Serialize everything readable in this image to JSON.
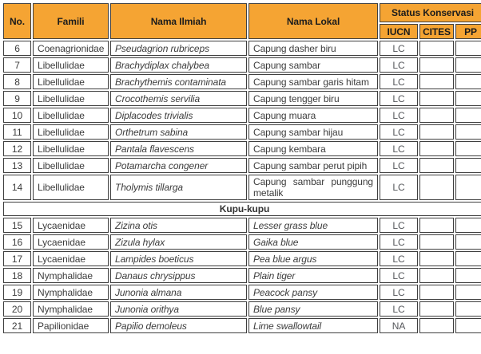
{
  "table": {
    "header": {
      "no": "No.",
      "famili": "Famili",
      "nama_ilmiah": "Nama Ilmiah",
      "nama_lokal": "Nama Lokal",
      "status_group": "Status Konservasi",
      "iucn": "IUCN",
      "cites": "CITES",
      "pp": "PP"
    },
    "rows": [
      {
        "no": "6",
        "famili": "Coenagrionidae",
        "nama_ilmiah": "Pseudagrion rubriceps",
        "nama_lokal": "Capung dasher biru",
        "lokal_italic": false,
        "iucn": "LC",
        "cites": "",
        "pp": ""
      },
      {
        "no": "7",
        "famili": "Libellulidae",
        "nama_ilmiah": "Brachydiplax chalybea",
        "nama_lokal": "Capung sambar",
        "lokal_italic": false,
        "iucn": "LC",
        "cites": "",
        "pp": ""
      },
      {
        "no": "8",
        "famili": "Libellulidae",
        "nama_ilmiah": "Brachythemis contaminata",
        "nama_lokal": "Capung sambar garis hitam",
        "lokal_italic": false,
        "iucn": "LC",
        "cites": "",
        "pp": ""
      },
      {
        "no": "9",
        "famili": "Libellulidae",
        "nama_ilmiah": "Crocothemis servilia",
        "nama_lokal": "Capung tengger biru",
        "lokal_italic": false,
        "iucn": "LC",
        "cites": "",
        "pp": ""
      },
      {
        "no": "10",
        "famili": "Libellulidae",
        "nama_ilmiah": "Diplacodes trivialis",
        "nama_lokal": "Capung muara",
        "lokal_italic": false,
        "iucn": "LC",
        "cites": "",
        "pp": ""
      },
      {
        "no": "11",
        "famili": "Libellulidae",
        "nama_ilmiah": "Orthetrum sabina",
        "nama_lokal": "Capung sambar hijau",
        "lokal_italic": false,
        "iucn": "LC",
        "cites": "",
        "pp": ""
      },
      {
        "no": "12",
        "famili": "Libellulidae",
        "nama_ilmiah": "Pantala flavescens",
        "nama_lokal": "Capung kembara",
        "lokal_italic": false,
        "iucn": "LC",
        "cites": "",
        "pp": ""
      },
      {
        "no": "13",
        "famili": "Libellulidae",
        "nama_ilmiah": "Potamarcha congener",
        "nama_lokal": "Capung sambar perut pipih",
        "lokal_italic": false,
        "iucn": "LC",
        "cites": "",
        "pp": ""
      },
      {
        "no": "14",
        "famili": "Libellulidae",
        "nama_ilmiah": "Tholymis tillarga",
        "nama_lokal": "Capung sambar punggung metalik",
        "lokal_italic": false,
        "iucn": "LC",
        "cites": "",
        "pp": ""
      },
      {
        "type": "section",
        "label": "Kupu-kupu"
      },
      {
        "no": "15",
        "famili": "Lycaenidae",
        "nama_ilmiah": "Zizina otis",
        "nama_lokal": "Lesser grass blue",
        "lokal_italic": true,
        "iucn": "LC",
        "cites": "",
        "pp": ""
      },
      {
        "no": "16",
        "famili": "Lycaenidae",
        "nama_ilmiah": "Zizula hylax",
        "nama_lokal": "Gaika blue",
        "lokal_italic": true,
        "iucn": "LC",
        "cites": "",
        "pp": ""
      },
      {
        "no": "17",
        "famili": "Lycaenidae",
        "nama_ilmiah": "Lampides boeticus",
        "nama_lokal": "Pea blue argus",
        "lokal_italic": true,
        "iucn": "LC",
        "cites": "",
        "pp": ""
      },
      {
        "no": "18",
        "famili": "Nymphalidae",
        "nama_ilmiah": "Danaus chrysippus",
        "nama_lokal": "Plain tiger",
        "lokal_italic": true,
        "iucn": "LC",
        "cites": "",
        "pp": ""
      },
      {
        "no": "19",
        "famili": "Nymphalidae",
        "nama_ilmiah": "Junonia almana",
        "nama_lokal": "Peacock pansy",
        "lokal_italic": true,
        "iucn": "LC",
        "cites": "",
        "pp": ""
      },
      {
        "no": "20",
        "famili": "Nymphalidae",
        "nama_ilmiah": "Junonia orithya",
        "nama_lokal": "Blue pansy",
        "lokal_italic": true,
        "iucn": "LC",
        "cites": "",
        "pp": ""
      },
      {
        "no": "21",
        "famili": "Papilionidae",
        "nama_ilmiah": "Papilio demoleus",
        "nama_lokal": "Lime swallowtail",
        "lokal_italic": true,
        "iucn": "NA",
        "cites": "",
        "pp": ""
      }
    ]
  },
  "colors": {
    "header_bg": "#F5A433",
    "border": "#3F3F3F",
    "body_text": "#3C3C3C",
    "status_text": "#54565A"
  }
}
